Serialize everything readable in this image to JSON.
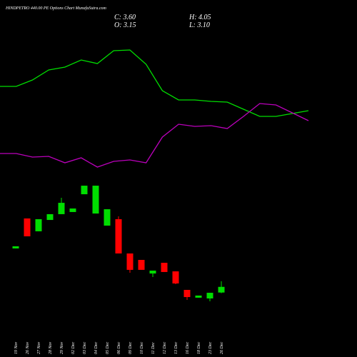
{
  "chart_data": [
    {
      "type": "line",
      "ylim": [
        0,
        100
      ],
      "series": [
        {
          "color": "#00dd00",
          "values": [
            64.5,
            64.5,
            69,
            76,
            78,
            83,
            80.5,
            89.5,
            90,
            80,
            61.5,
            55,
            55,
            54,
            53.5,
            48.5,
            43.5,
            43.5,
            45.5,
            47.5
          ]
        },
        {
          "color": "#bb00bb",
          "values": [
            17.5,
            17.5,
            15,
            15.5,
            11,
            14.5,
            8,
            12,
            13,
            11,
            29,
            38,
            36.5,
            37,
            35,
            43.5,
            52.5,
            51.5,
            46,
            40.5
          ]
        }
      ]
    },
    {
      "type": "candlestick",
      "title": "HINDPETRO 440.00 PE Options Chart MunafaSutra.com",
      "close_label": "C: 3.60",
      "high_label": "H: 4.05",
      "open_label": "O: 3.15",
      "low_label": "L: 3.10",
      "up_color": "#00dd00",
      "down_color": "#ff0000",
      "ylim": [
        2,
        12.2
      ],
      "categories": [
        "19 Nov",
        "26 Nov",
        "27 Nov",
        "28 Nov",
        "29 Nov",
        "02 Dec",
        "03 Dec",
        "04 Dec",
        "05 Dec",
        "06 Dec",
        "09 Dec",
        "10 Dec",
        "11 Dec",
        "12 Dec",
        "13 Dec",
        "16 Dec",
        "18 Dec",
        "23 Dec",
        "26 Dec"
      ],
      "open": [
        6.65,
        9.03,
        8.01,
        8.91,
        9.37,
        9.54,
        10.95,
        9.42,
        8.46,
        8.97,
        6.25,
        5.74,
        4.66,
        5.51,
        4.83,
        3.36,
        2.74,
        2.68,
        3.15
      ],
      "close": [
        6.82,
        7.61,
        8.97,
        9.37,
        10.27,
        9.82,
        11.63,
        11.63,
        9.76,
        6.25,
        4.95,
        4.95,
        4.89,
        4.78,
        3.87,
        2.79,
        2.91,
        3.13,
        3.6
      ],
      "high": [
        6.82,
        9.03,
        8.97,
        9.37,
        10.67,
        9.82,
        11.63,
        11.63,
        9.76,
        9.2,
        6.25,
        5.74,
        4.89,
        5.51,
        4.83,
        3.36,
        2.91,
        3.13,
        4.05
      ],
      "low": [
        6.65,
        7.61,
        8.01,
        8.91,
        9.37,
        9.54,
        10.95,
        9.42,
        8.46,
        6.25,
        4.72,
        4.95,
        4.38,
        4.78,
        3.81,
        2.57,
        2.74,
        2.45,
        3.1
      ]
    }
  ]
}
